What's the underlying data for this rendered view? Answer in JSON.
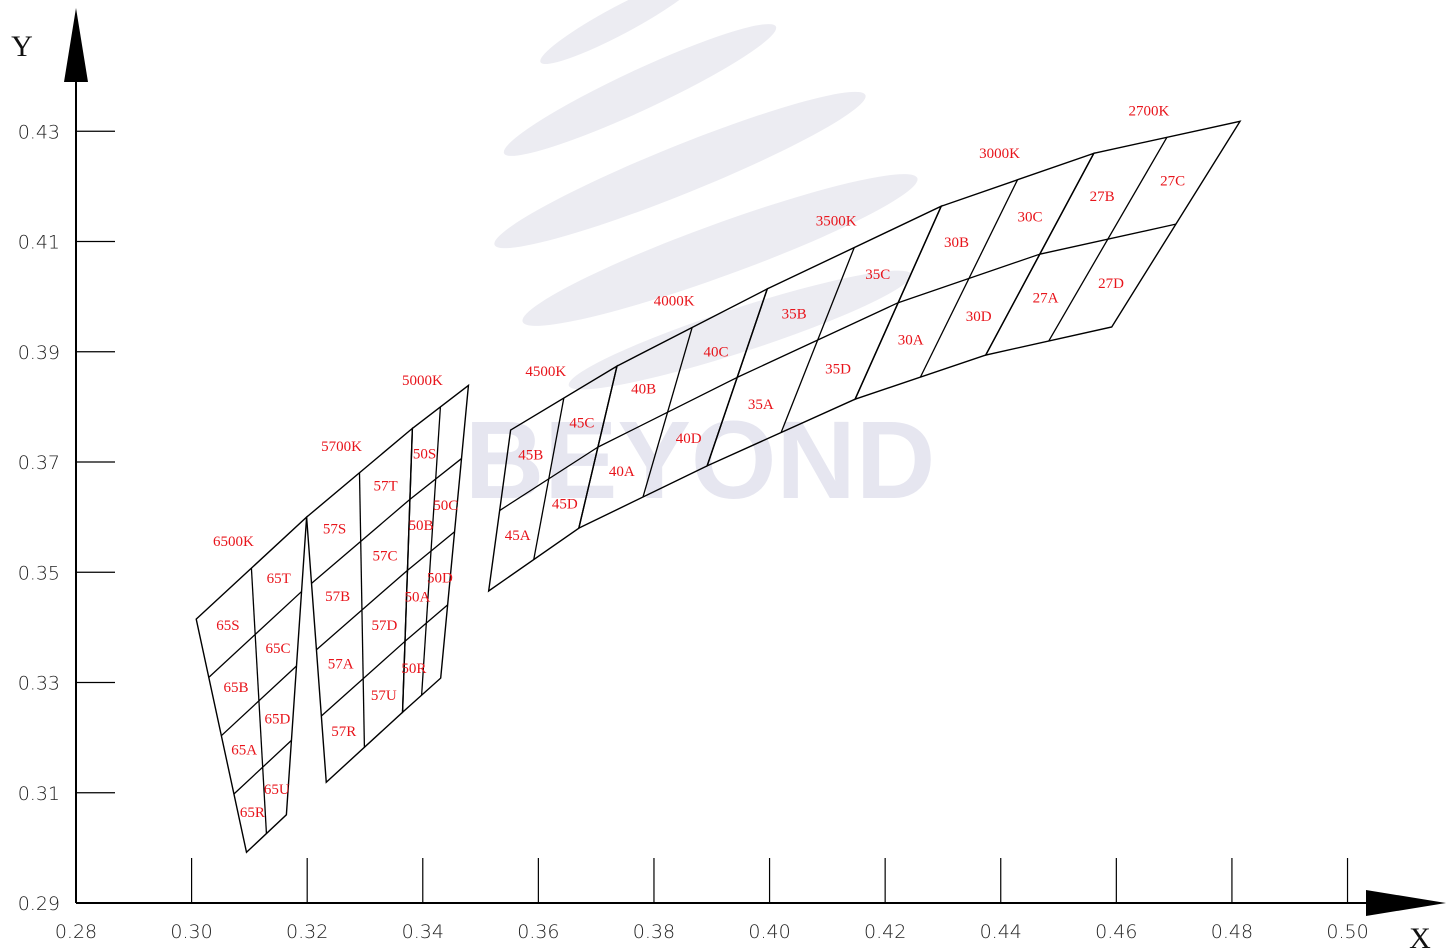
{
  "chart_data": {
    "type": "bins",
    "x_label": "X",
    "y_label": "Y",
    "watermark": "BEYOND",
    "xlim": [
      0.28,
      0.516
    ],
    "ylim": [
      0.29,
      0.452
    ],
    "xticks": [
      0.28,
      {
        "value": 0.3,
        "label": "0.30"
      },
      0.32,
      0.34,
      0.36,
      0.38,
      {
        "value": 0.4,
        "label": "0.40"
      },
      0.42,
      0.44,
      0.46,
      0.48,
      {
        "value": 0.5,
        "label": "0.50"
      }
    ],
    "yticks": [
      0.29,
      0.31,
      0.33,
      0.35,
      0.37,
      0.39,
      0.41,
      0.43
    ],
    "line_color": "#000000",
    "label_color": "#e8141b",
    "blocks": [
      {
        "name": "6500K",
        "corners": [
          [
            0.3008,
            0.3415
          ],
          [
            0.3199,
            0.36
          ],
          [
            0.3164,
            0.306
          ],
          [
            0.3095,
            0.2992
          ]
        ],
        "cells": [
          [
            "65S",
            "65T"
          ],
          [
            "65B",
            "65C"
          ],
          [
            "65A",
            "65D"
          ],
          [
            "65R",
            "65U"
          ]
        ]
      },
      {
        "name": "5700K",
        "corners": [
          [
            0.3199,
            0.36
          ],
          [
            0.3382,
            0.3761
          ],
          [
            0.3365,
            0.3246
          ],
          [
            0.3233,
            0.3119
          ]
        ],
        "cells": [
          [
            "57S",
            "57T"
          ],
          [
            "57B",
            "57C"
          ],
          [
            "57A",
            "57D"
          ],
          [
            "57R",
            "57U"
          ]
        ]
      },
      {
        "name": "5000K",
        "corners": [
          [
            0.3382,
            0.3761
          ],
          [
            0.3479,
            0.3839
          ],
          [
            0.3431,
            0.3308
          ],
          [
            0.3365,
            0.3246
          ]
        ],
        "cells": [
          [
            "50S",
            null
          ],
          [
            "50B",
            "50C"
          ],
          [
            "50A",
            "50D"
          ],
          [
            "50R",
            null
          ]
        ]
      },
      {
        "name": "4500K",
        "corners": [
          [
            0.3552,
            0.3758
          ],
          [
            0.3736,
            0.3874
          ],
          [
            0.367,
            0.358
          ],
          [
            0.3514,
            0.3466
          ]
        ],
        "cells": [
          [
            "45B",
            "45C"
          ],
          [
            "45A",
            "45D"
          ]
        ]
      },
      {
        "name": "4000K",
        "corners": [
          [
            0.3736,
            0.3874
          ],
          [
            0.3996,
            0.4014
          ],
          [
            0.3892,
            0.3693
          ],
          [
            0.367,
            0.358
          ]
        ],
        "cells": [
          [
            "40B",
            "40C"
          ],
          [
            "40A",
            "40D"
          ]
        ]
      },
      {
        "name": "3500K",
        "corners": [
          [
            0.3996,
            0.4014
          ],
          [
            0.4297,
            0.4164
          ],
          [
            0.4148,
            0.3814
          ],
          [
            0.3892,
            0.3693
          ]
        ],
        "cells": [
          [
            "35B",
            "35C"
          ],
          [
            "35A",
            "35D"
          ]
        ]
      },
      {
        "name": "3000K",
        "corners": [
          [
            0.4297,
            0.4164
          ],
          [
            0.4561,
            0.426
          ],
          [
            0.4374,
            0.3894
          ],
          [
            0.4148,
            0.3814
          ]
        ],
        "cells": [
          [
            "30B",
            "30C"
          ],
          [
            "30A",
            "30D"
          ]
        ]
      },
      {
        "name": "2700K",
        "corners": [
          [
            0.4561,
            0.426
          ],
          [
            0.4814,
            0.4318
          ],
          [
            0.4592,
            0.3945
          ],
          [
            0.4374,
            0.3894
          ]
        ],
        "cells": [
          [
            "27B",
            "27C"
          ],
          [
            "27A",
            "27D"
          ]
        ]
      }
    ]
  }
}
